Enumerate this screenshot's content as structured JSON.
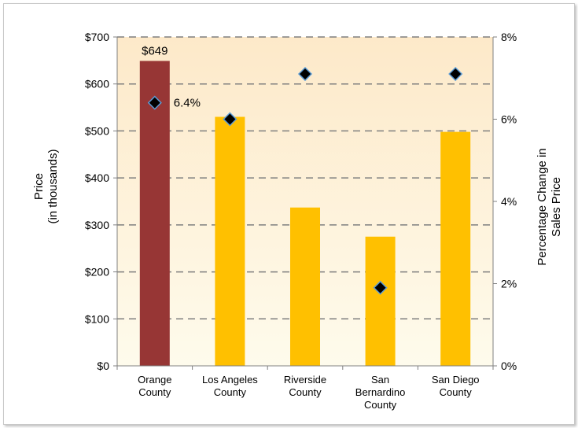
{
  "chart_data": {
    "type": "bar",
    "categories": [
      [
        "Orange",
        "County"
      ],
      [
        "Los Angeles",
        "County"
      ],
      [
        "Riverside",
        "County"
      ],
      [
        "San",
        "Bernardino",
        "County"
      ],
      [
        "San Diego",
        "County"
      ]
    ],
    "series": [
      {
        "axis": "left",
        "type": "bar",
        "values": [
          649,
          530,
          337,
          275,
          498
        ]
      },
      {
        "axis": "right",
        "type": "scatter",
        "values": [
          6.4,
          6.0,
          7.1,
          1.9,
          7.1
        ]
      }
    ],
    "data_labels": [
      {
        "series": 0,
        "index": 0,
        "text": "$649"
      },
      {
        "series": 1,
        "index": 0,
        "text": "6.4%"
      }
    ],
    "ylabel": [
      "Price",
      "(in thousands)"
    ],
    "y2label": [
      "Percentage Change in",
      "Sales Price"
    ],
    "ylim": [
      0,
      700
    ],
    "y2lim": [
      0,
      8
    ],
    "yticks": [
      "$0",
      "$100",
      "$200",
      "$300",
      "$400",
      "$500",
      "$600",
      "$700"
    ],
    "y2ticks": [
      "0%",
      "2%",
      "4%",
      "6%",
      "8%"
    ],
    "grid": true,
    "colors": {
      "highlight_bar": "#973635",
      "bar": "#ffc000",
      "marker": "#000000",
      "marker_edge": "#5b9bd5",
      "grid": "#7f7f7f",
      "plot_bg_top": "#fde9c9",
      "plot_bg_bottom": "#fefbec"
    }
  }
}
